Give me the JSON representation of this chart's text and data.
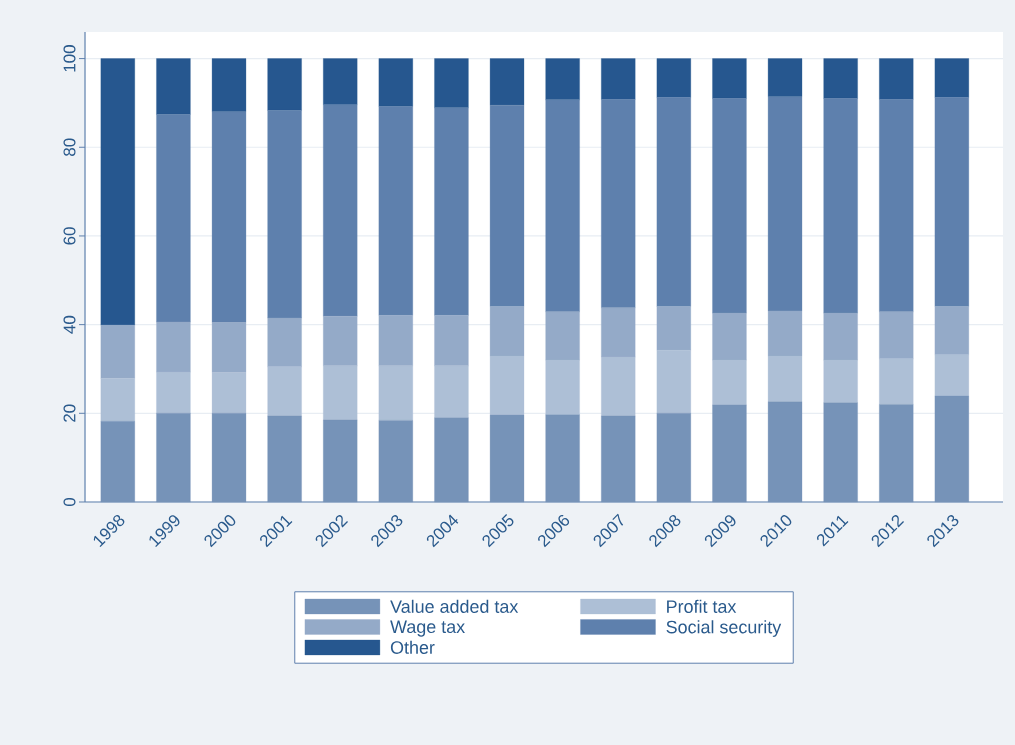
{
  "chart_data": {
    "type": "bar",
    "stacked": true,
    "categories": [
      "1998",
      "1999",
      "2000",
      "2001",
      "2002",
      "2003",
      "2004",
      "2005",
      "2006",
      "2007",
      "2008",
      "2009",
      "2010",
      "2011",
      "2012",
      "2013"
    ],
    "series": [
      {
        "name": "Value added tax",
        "color": "#7693b8",
        "values": [
          18.2,
          20.0,
          20.0,
          19.4,
          18.5,
          18.4,
          19.0,
          19.6,
          19.7,
          19.4,
          20.0,
          21.9,
          22.6,
          22.4,
          22.0,
          23.9
        ]
      },
      {
        "name": "Profit tax",
        "color": "#adbfd6",
        "values": [
          9.7,
          9.3,
          9.2,
          11.1,
          12.2,
          12.3,
          11.7,
          13.3,
          12.3,
          13.3,
          14.2,
          10.1,
          10.3,
          9.6,
          10.3,
          9.3
        ]
      },
      {
        "name": "Wage tax",
        "color": "#94aac8",
        "values": [
          12.0,
          11.3,
          11.3,
          11.0,
          11.2,
          11.4,
          11.4,
          11.2,
          10.9,
          11.1,
          9.9,
          10.6,
          10.2,
          10.6,
          10.6,
          10.9
        ]
      },
      {
        "name": "Social security",
        "color": "#5e80ad",
        "values": [
          0,
          46.8,
          47.5,
          46.8,
          47.7,
          47.1,
          46.8,
          45.4,
          47.8,
          47.0,
          47.1,
          48.4,
          48.3,
          48.4,
          47.9,
          47.1
        ]
      },
      {
        "name": "Other",
        "color": "#26578f",
        "values": [
          60.1,
          12.6,
          12.0,
          11.7,
          10.4,
          10.8,
          11.1,
          10.5,
          9.3,
          9.2,
          8.8,
          9.0,
          8.6,
          9.0,
          9.2,
          8.8
        ]
      }
    ],
    "ylim": [
      0,
      106
    ],
    "yticks": [
      0,
      20,
      40,
      60,
      80,
      100
    ],
    "grid": "y",
    "legend": "bottom"
  }
}
